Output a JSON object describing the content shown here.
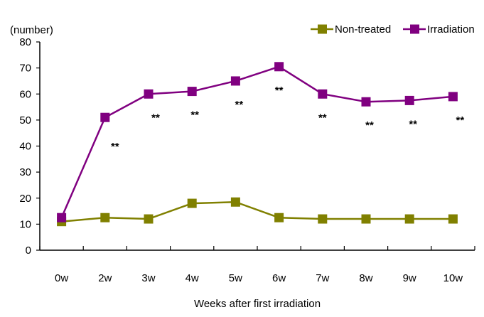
{
  "chart_data": {
    "type": "line",
    "ylabel": "(number)",
    "xlabel": "Weeks after first irradiation",
    "ylim": [
      0,
      80
    ],
    "yticks": [
      0,
      10,
      20,
      30,
      40,
      50,
      60,
      70,
      80
    ],
    "categories": [
      "0w",
      "2w",
      "3w",
      "4w",
      "5w",
      "6w",
      "7w",
      "8w",
      "9w",
      "10w"
    ],
    "legend_position": "top-right",
    "significance_marker": "**",
    "significance_flags": [
      false,
      true,
      true,
      true,
      true,
      true,
      true,
      true,
      true,
      true
    ],
    "series": [
      {
        "name": "Non-treated",
        "color": "#808000",
        "marker": "square",
        "values": [
          11,
          12.5,
          12,
          18,
          18.5,
          12.5,
          12,
          12,
          12,
          12
        ]
      },
      {
        "name": "Irradiation",
        "color": "#800080",
        "marker": "square",
        "values": [
          12.5,
          51,
          60,
          61,
          65,
          70.5,
          60,
          57,
          57.5,
          59
        ]
      }
    ]
  }
}
